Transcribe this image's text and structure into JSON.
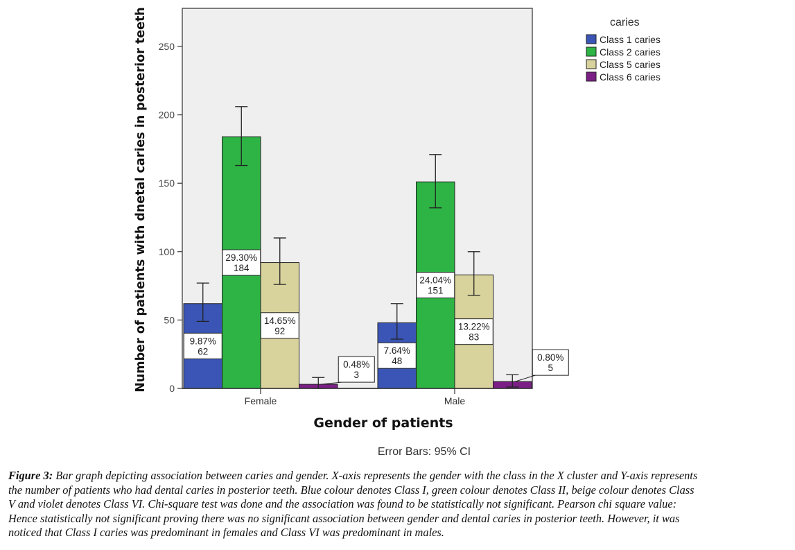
{
  "chart_data": {
    "type": "bar",
    "title": "",
    "xlabel": "Gender of patients",
    "ylabel": "Number of patients with dnetal caries in posterior teeth",
    "categories": [
      "Female",
      "Male"
    ],
    "ylim": [
      0,
      275
    ],
    "yticks": [
      0,
      50,
      100,
      150,
      200,
      250
    ],
    "grid": false,
    "legend": {
      "title": "caries",
      "placement": "right"
    },
    "series": [
      {
        "name": "Class 1 caries",
        "color": "#3a55b5",
        "values": [
          62,
          48
        ],
        "labels": [
          "9.87%",
          "7.64%"
        ],
        "ci": [
          [
            49,
            77
          ],
          [
            36,
            62
          ]
        ]
      },
      {
        "name": "Class 2 caries",
        "color": "#2db444",
        "values": [
          184,
          151
        ],
        "labels": [
          "29.30%",
          "24.04%"
        ],
        "ci": [
          [
            163,
            206
          ],
          [
            132,
            171
          ]
        ]
      },
      {
        "name": "Class 5 caries",
        "color": "#d8d29c",
        "values": [
          92,
          83
        ],
        "labels": [
          "14.65%",
          "13.22%"
        ],
        "ci": [
          [
            76,
            110
          ],
          [
            68,
            100
          ]
        ]
      },
      {
        "name": "Class 6 caries",
        "color": "#7b1f86",
        "values": [
          3,
          5
        ],
        "labels": [
          "0.48%",
          "0.80%"
        ],
        "ci": [
          [
            0,
            8
          ],
          [
            1,
            10
          ]
        ]
      }
    ],
    "annotation": "Error Bars: 95% CI"
  },
  "caption": {
    "label": "Figure 3:",
    "lines": [
      " Bar graph depicting association between caries and gender. X-axis represents the gender with the class in the X cluster and Y-axis represents",
      "the number of patients who had dental caries in posterior teeth. Blue colour denotes Class I, green colour denotes Class II, beige colour denotes Class",
      "V and violet denotes Class VI. Chi-square test was done and the association was found to be statistically not significant. Pearson chi square value:",
      "Hence statistically not significant proving there was no significant association between gender and dental caries in posterior teeth. However, it was",
      "noticed that Class I caries was predominant in females and Class VI was predominant in males."
    ]
  }
}
